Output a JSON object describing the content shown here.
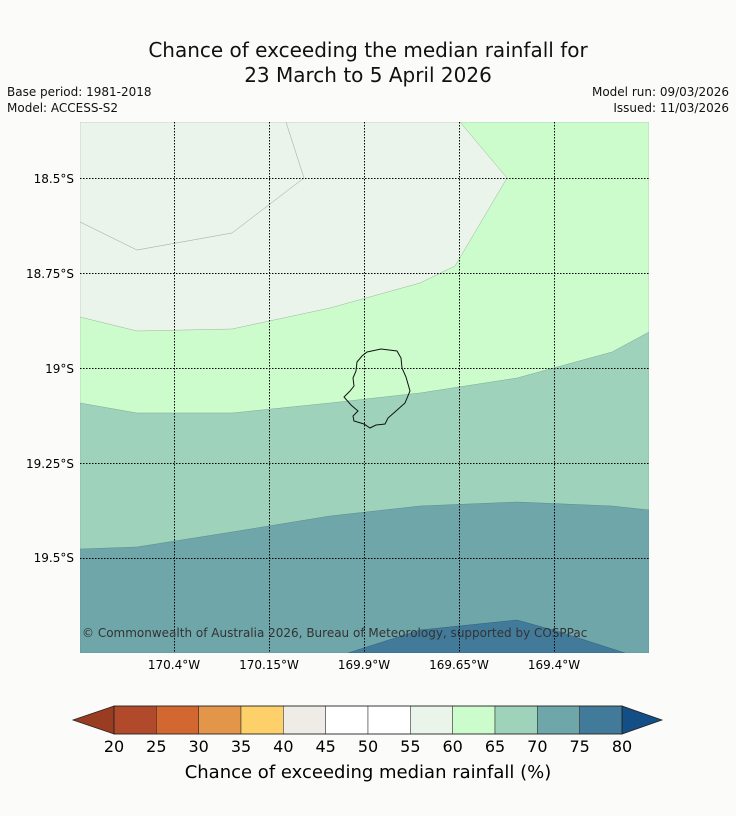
{
  "title_line1": "Chance of exceeding the median rainfall for",
  "title_line2": "23 March to 5 April 2026",
  "base_period": "Base period: 1981-2018",
  "model": "Model: ACCESS-S2",
  "model_run": "Model run: 09/03/2026",
  "issued": "Issued: 11/03/2026",
  "copyright": "© Commonwealth of Australia 2026, Bureau of Meteorology, supported by COSPPac",
  "lat_labels": [
    "18.5°S",
    "18.75°S",
    "19°S",
    "19.25°S",
    "19.5°S"
  ],
  "lon_labels": [
    "170.4°W",
    "170.15°W",
    "169.9°W",
    "169.65°W",
    "169.4°W"
  ],
  "colorbar": {
    "title": "Chance of exceeding median rainfall (%)",
    "ticks": [
      "20",
      "25",
      "30",
      "35",
      "40",
      "45",
      "50",
      "55",
      "60",
      "65",
      "70",
      "75",
      "80"
    ],
    "colors": [
      "#b04a2a",
      "#d2672f",
      "#e3954a",
      "#fdd06a",
      "#efece8",
      "#ffffff",
      "#ffffff",
      "#eaf4ea",
      "#ccfccc",
      "#9ed2ba",
      "#6fa6a9",
      "#427b9a"
    ],
    "under_color": "#9a3c22",
    "over_color": "#134e85"
  },
  "region_colors": {
    "45-50": "#ffffff",
    "55-60": "#eaf4ea",
    "60-65": "#ccfccc",
    "65-70": "#9ed2ba",
    "70-75": "#6fa6a9",
    "75-80": "#427b9a"
  }
}
